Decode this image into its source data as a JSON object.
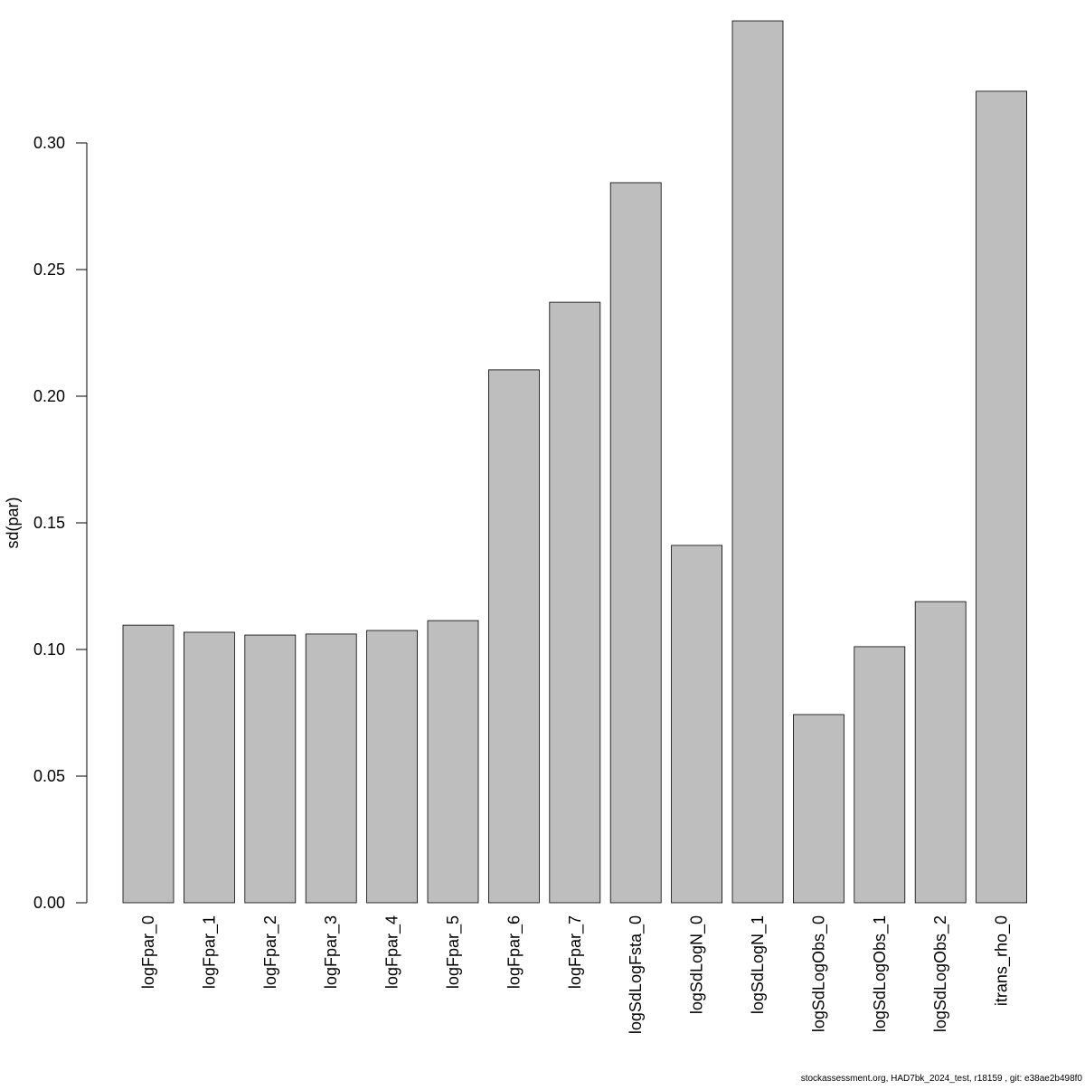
{
  "chart_data": {
    "type": "bar",
    "title": "",
    "xlabel": "",
    "ylabel": "sd(par)",
    "ylim": [
      0,
      0.35
    ],
    "yticks": [
      "0.00",
      "0.05",
      "0.10",
      "0.15",
      "0.20",
      "0.25",
      "0.30"
    ],
    "grid": false,
    "bar_color": "#bebebe",
    "categories": [
      "logFpar_0",
      "logFpar_1",
      "logFpar_2",
      "logFpar_3",
      "logFpar_4",
      "logFpar_5",
      "logFpar_6",
      "logFpar_7",
      "logSdLogFsta_0",
      "logSdLogN_0",
      "logSdLogN_1",
      "logSdLogObs_0",
      "logSdLogObs_1",
      "logSdLogObs_2",
      "itrans_rho_0"
    ],
    "values": [
      0.1096,
      0.1068,
      0.1057,
      0.1061,
      0.1075,
      0.1114,
      0.2104,
      0.2371,
      0.2843,
      0.1411,
      0.3482,
      0.0743,
      0.1011,
      0.1189,
      0.3204
    ]
  },
  "footer": "stockassessment.org, HAD7bk_2024_test, r18159 , git: e38ae2b498f0"
}
